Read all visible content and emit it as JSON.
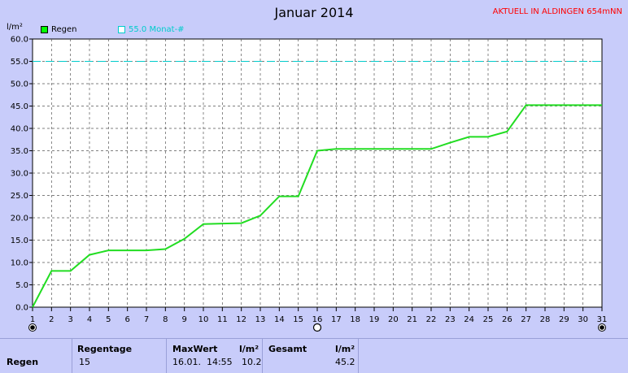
{
  "header": {
    "title": "Januar 2014",
    "station": "AKTUELL IN ALDINGEN 654mNN",
    "y_unit": "l/m²"
  },
  "legend": {
    "items": [
      {
        "label": "Regen",
        "color": "#00ff00",
        "marker": "filled-square"
      },
      {
        "label": "55.0 Monat-#",
        "color": "#00ffff",
        "marker": "hollow-square"
      }
    ]
  },
  "chart_data": {
    "type": "line",
    "title": "Januar 2014",
    "ylabel": "l/m²",
    "xlabel": "",
    "xlim": [
      1,
      31
    ],
    "ylim": [
      0,
      60
    ],
    "x_ticks": [
      1,
      2,
      3,
      4,
      5,
      6,
      7,
      8,
      9,
      10,
      11,
      12,
      13,
      14,
      15,
      16,
      17,
      18,
      19,
      20,
      21,
      22,
      23,
      24,
      25,
      26,
      27,
      28,
      29,
      30,
      31
    ],
    "y_ticks": [
      0,
      5,
      10,
      15,
      20,
      25,
      30,
      35,
      40,
      45,
      50,
      55,
      60
    ],
    "y_tick_labels": [
      "0.0",
      "5.0",
      "10.0",
      "15.0",
      "20.0",
      "25.0",
      "30.0",
      "35.0",
      "40.0",
      "45.0",
      "50.0",
      "55.0",
      "60.0"
    ],
    "grid": true,
    "series": [
      {
        "name": "Regen",
        "color": "#22dd22",
        "x": [
          1,
          2,
          3,
          4,
          5,
          6,
          7,
          8,
          9,
          10,
          11,
          12,
          13,
          14,
          15,
          16,
          17,
          18,
          19,
          20,
          21,
          22,
          23,
          24,
          25,
          26,
          27,
          28,
          29,
          30,
          31
        ],
        "y": [
          0,
          8.1,
          8.1,
          11.7,
          12.7,
          12.7,
          12.7,
          13.0,
          15.3,
          18.6,
          18.7,
          18.8,
          20.5,
          24.8,
          24.8,
          35.0,
          35.4,
          35.4,
          35.4,
          35.4,
          35.4,
          35.4,
          36.8,
          38.1,
          38.1,
          39.3,
          45.2,
          45.2,
          45.2,
          45.2,
          45.2
        ]
      },
      {
        "name": "55.0 Monat-#",
        "color": "#00cccc",
        "style": "dashed",
        "x": [
          1,
          31
        ],
        "y": [
          55.0,
          55.0
        ]
      }
    ],
    "markers": [
      {
        "x": 1,
        "symbol": "filled-circle"
      },
      {
        "x": 16,
        "symbol": "hollow-circle"
      },
      {
        "x": 31,
        "symbol": "filled-circle"
      }
    ]
  },
  "footer": {
    "row_label": "Regen",
    "regentage_header": "Regentage",
    "regentage_value": "15",
    "maxwert_header": "MaxWert",
    "maxwert_unit": "l/m²",
    "maxwert_time": "16.01.  14:55",
    "maxwert_value": "10.2",
    "gesamt_header": "Gesamt",
    "gesamt_unit": "l/m²",
    "gesamt_value": "45.2"
  }
}
